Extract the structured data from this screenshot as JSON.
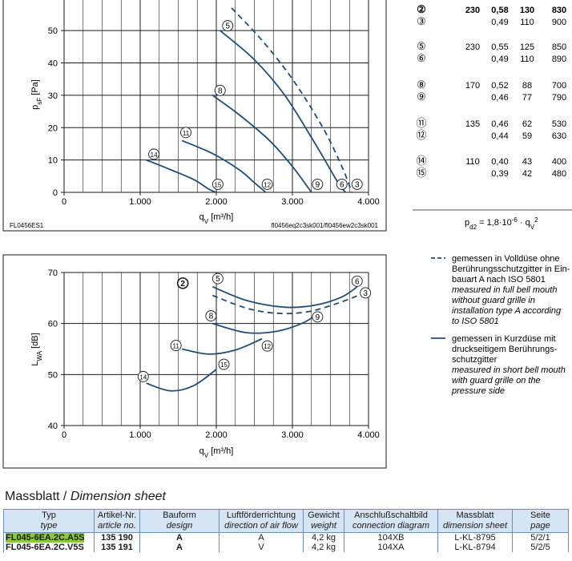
{
  "colors": {
    "curve": "#1f4e79",
    "dash": "#1f4e79",
    "grid": "#1a1a1a",
    "header_bg": "#d6e5f3",
    "highlight": "#8dc63f"
  },
  "chart_data": [
    {
      "type": "line",
      "xlabel": "q",
      "xlabel_sub": "V",
      "xlabel_unit": " [m³/h]",
      "ylabel": "p",
      "ylabel_sub": "sF",
      "ylabel_unit": " [Pa]",
      "xlim": [
        0,
        4000
      ],
      "ylim": [
        0,
        55
      ],
      "x_ticks": [
        0,
        1000,
        2000,
        3000,
        4000
      ],
      "x_tick_labels": [
        "0",
        "1.000",
        "2.000",
        "3.000",
        "4.000"
      ],
      "y_ticks": [
        0,
        10,
        20,
        30,
        40,
        50
      ],
      "y_tick_labels": [
        "0",
        "10",
        "20",
        "30",
        "40",
        "50"
      ],
      "grid": true,
      "footer_left": "FL0456ES1",
      "footer_right": "fl0456eq2c3sk001/fl0456ew2c3sk001",
      "series": [
        {
          "name": "②",
          "style": "dashed",
          "points": [
            [
              2200,
              57
            ],
            [
              2600,
              47
            ],
            [
              3000,
              35
            ],
            [
              3400,
              20
            ],
            [
              3650,
              8
            ],
            [
              3780,
              0
            ]
          ]
        },
        {
          "name": "⑤",
          "style": "solid",
          "points": [
            [
              2050,
              50
            ],
            [
              2500,
              41
            ],
            [
              2900,
              30
            ],
            [
              3300,
              15
            ],
            [
              3600,
              3
            ],
            [
              3700,
              0
            ]
          ]
        },
        {
          "name": "⑧",
          "style": "solid",
          "points": [
            [
              1950,
              30
            ],
            [
              2300,
              24
            ],
            [
              2700,
              16
            ],
            [
              3000,
              8
            ],
            [
              3250,
              0
            ]
          ]
        },
        {
          "name": "⑪",
          "style": "solid",
          "points": [
            [
              1550,
              16
            ],
            [
              1950,
              12
            ],
            [
              2300,
              7
            ],
            [
              2500,
              3
            ],
            [
              2650,
              0
            ]
          ]
        },
        {
          "name": "⑭",
          "style": "solid",
          "points": [
            [
              1080,
              10
            ],
            [
              1400,
              7
            ],
            [
              1700,
              4
            ],
            [
              1900,
              1
            ],
            [
              2000,
              0
            ]
          ]
        }
      ],
      "markers": [
        {
          "label": "5",
          "x": 2150,
          "y": 51.5
        },
        {
          "label": "8",
          "x": 2050,
          "y": 31.5
        },
        {
          "label": "11",
          "x": 1600,
          "y": 18.5
        },
        {
          "label": "14",
          "x": 1180,
          "y": 11.8
        },
        {
          "label": "15",
          "x": 2020,
          "y": 2.5
        },
        {
          "label": "12",
          "x": 2670,
          "y": 2.5
        },
        {
          "label": "9",
          "x": 3330,
          "y": 2.5
        },
        {
          "label": "6",
          "x": 3650,
          "y": 2.5
        },
        {
          "label": "3",
          "x": 3850,
          "y": 2.5
        }
      ]
    },
    {
      "type": "line",
      "xlabel": "q",
      "xlabel_sub": "V",
      "xlabel_unit": " [m³/h]",
      "ylabel": "L",
      "ylabel_sub": "WA",
      "ylabel_unit": " [dB]",
      "xlim": [
        0,
        4000
      ],
      "ylim": [
        40,
        70
      ],
      "x_ticks": [
        0,
        1000,
        2000,
        3000,
        4000
      ],
      "x_tick_labels": [
        "0",
        "1.000",
        "2.000",
        "3.000",
        "4.000"
      ],
      "y_ticks": [
        40,
        50,
        60,
        70
      ],
      "y_tick_labels": [
        "40",
        "50",
        "60",
        "70"
      ],
      "grid": true,
      "series": [
        {
          "name": "②",
          "style": "dashed",
          "points": [
            [
              1950,
              65.5
            ],
            [
              2400,
              63
            ],
            [
              2800,
              62
            ],
            [
              3200,
              62.3
            ],
            [
              3600,
              64
            ],
            [
              3950,
              66
            ]
          ]
        },
        {
          "name": "⑤",
          "style": "solid",
          "points": [
            [
              1950,
              67.2
            ],
            [
              2400,
              64.5
            ],
            [
              2900,
              63.2
            ],
            [
              3300,
              63.6
            ],
            [
              3650,
              65.2
            ],
            [
              3850,
              67.2
            ]
          ]
        },
        {
          "name": "⑧",
          "style": "solid",
          "points": [
            [
              1950,
              60
            ],
            [
              2400,
              58.2
            ],
            [
              2800,
              58.5
            ],
            [
              3150,
              60.2
            ],
            [
              3350,
              62.2
            ]
          ]
        },
        {
          "name": "⑪",
          "style": "solid",
          "points": [
            [
              1550,
              55
            ],
            [
              1900,
              54
            ],
            [
              2250,
              54.8
            ],
            [
              2600,
              57
            ]
          ]
        },
        {
          "name": "⑭",
          "style": "solid",
          "points": [
            [
              1080,
              48.3
            ],
            [
              1400,
              46.8
            ],
            [
              1700,
              47.8
            ],
            [
              2000,
              51
            ]
          ]
        }
      ],
      "markers": [
        {
          "label": "2",
          "x": 1560,
          "y": 67.9,
          "bold": true
        },
        {
          "label": "5",
          "x": 2020,
          "y": 68.8
        },
        {
          "label": "6",
          "x": 3850,
          "y": 68.3
        },
        {
          "label": "3",
          "x": 3960,
          "y": 66
        },
        {
          "label": "8",
          "x": 1930,
          "y": 61.5
        },
        {
          "label": "9",
          "x": 3330,
          "y": 61.3
        },
        {
          "label": "11",
          "x": 1470,
          "y": 55.7
        },
        {
          "label": "12",
          "x": 2670,
          "y": 55.6
        },
        {
          "label": "14",
          "x": 1040,
          "y": 49.6
        },
        {
          "label": "15",
          "x": 2100,
          "y": 52
        }
      ]
    }
  ],
  "operating_table": {
    "groups": [
      {
        "rows": [
          {
            "mark": "②",
            "bold": true,
            "voltage": "230",
            "current": "0,58",
            "power": "130",
            "speed": "830"
          },
          {
            "mark": "③",
            "bold": false,
            "voltage": "",
            "current": "0,49",
            "power": "110",
            "speed": "900"
          }
        ]
      },
      {
        "rows": [
          {
            "mark": "⑤",
            "bold": false,
            "voltage": "230",
            "current": "0,55",
            "power": "125",
            "speed": "850"
          },
          {
            "mark": "⑥",
            "bold": false,
            "voltage": "",
            "current": "0,49",
            "power": "110",
            "speed": "890"
          }
        ]
      },
      {
        "rows": [
          {
            "mark": "⑧",
            "bold": false,
            "voltage": "170",
            "current": "0,52",
            "power": "88",
            "speed": "700"
          },
          {
            "mark": "⑨",
            "bold": false,
            "voltage": "",
            "current": "0,46",
            "power": "77",
            "speed": "790"
          }
        ]
      },
      {
        "rows": [
          {
            "mark": "⑪",
            "bold": false,
            "voltage": "135",
            "current": "0,46",
            "power": "62",
            "speed": "530"
          },
          {
            "mark": "⑫",
            "bold": false,
            "voltage": "",
            "current": "0,44",
            "power": "59",
            "speed": "630"
          }
        ]
      },
      {
        "rows": [
          {
            "mark": "⑭",
            "bold": false,
            "voltage": "110",
            "current": "0,40",
            "power": "43",
            "speed": "400"
          },
          {
            "mark": "⑮",
            "bold": false,
            "voltage": "",
            "current": "0,39",
            "power": "42",
            "speed": "480"
          }
        ]
      }
    ],
    "formula": {
      "p": "p",
      "sub": "d2",
      "eq": " = 1,8·10",
      "exp": "-6",
      "mid": " · q",
      "sub2": "V",
      "exp2": "2"
    }
  },
  "legend": {
    "dashed": {
      "de": [
        "gemessen in Volldüse ohne",
        "Berührungsschutzgitter in Ein-",
        "bauart A nach ISO 5801"
      ],
      "en": [
        "measured in full bell mouth",
        "without guard grille in",
        "installation type A according",
        "to ISO 5801"
      ]
    },
    "solid": {
      "de": [
        "gemessen in Kurzdüse mit",
        "druckseitigem Berührungs-",
        "schutzgitter"
      ],
      "en": [
        "measured in short bell mouth",
        "with guard grille on the",
        "pressure side"
      ]
    }
  },
  "dimension_sheet": {
    "title_de": "Massblatt / ",
    "title_en": "Dimension sheet",
    "headers": [
      {
        "de": "Typ",
        "en": "type"
      },
      {
        "de": "Artikel-Nr.",
        "en": "article no."
      },
      {
        "de": "Bauform",
        "en": "design"
      },
      {
        "de": "Luftförderrichtung",
        "en": "direction of air flow"
      },
      {
        "de": "Gewicht",
        "en": "weight"
      },
      {
        "de": "Anschlußschaltbild",
        "en": "connection diagram"
      },
      {
        "de": "Massblatt",
        "en": "dimension sheet"
      },
      {
        "de": "Seite",
        "en": "page"
      }
    ],
    "rows": [
      {
        "type": "FL045-6EA.2C.A5S",
        "article": "135 190",
        "design": "A",
        "flow": "A",
        "weight": "4,2 kg",
        "diagram": "104XB",
        "sheet": "L-KL-8795",
        "page": "5/2/1"
      },
      {
        "type": "FL045-6EA.2C.V5S",
        "article": "135 191",
        "design": "A",
        "flow": "V",
        "weight": "4,2 kg",
        "diagram": "104XA",
        "sheet": "L-KL-8794",
        "page": "5/2/5"
      }
    ]
  }
}
